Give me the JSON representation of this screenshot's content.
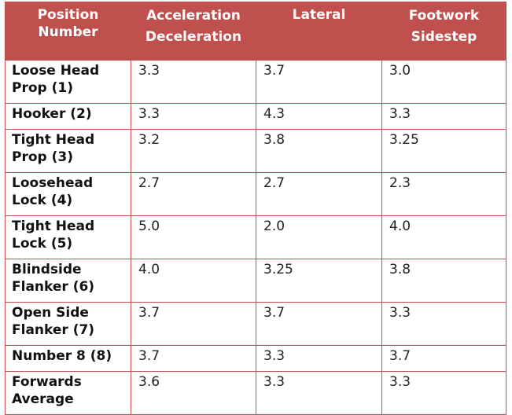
{
  "table": {
    "headers": [
      {
        "lines": [
          "Position",
          "Number"
        ]
      },
      {
        "lines": [
          "Acceleration",
          "Deceleration"
        ]
      },
      {
        "lines": [
          "Lateral"
        ]
      },
      {
        "lines": [
          "Footwork",
          "Sidestep"
        ]
      }
    ],
    "rows": [
      {
        "position": [
          "Loose Head",
          "Prop (1)"
        ],
        "acceleration": "3.3",
        "lateral": "3.7",
        "footwork": "3.0"
      },
      {
        "position": [
          "Hooker (2)"
        ],
        "acceleration": "3.3",
        "lateral": "4.3",
        "footwork": "3.3"
      },
      {
        "position": [
          "Tight Head",
          "Prop (3)"
        ],
        "acceleration": "3.2",
        "lateral": "3.8",
        "footwork": "3.25"
      },
      {
        "position": [
          "Loosehead",
          "Lock (4)"
        ],
        "acceleration": "2.7",
        "lateral": "2.7",
        "footwork": "2.3"
      },
      {
        "position": [
          "Tight Head",
          "Lock (5)"
        ],
        "acceleration": "5.0",
        "lateral": "2.0",
        "footwork": "4.0"
      },
      {
        "position": [
          "Blindside",
          "Flanker (6)"
        ],
        "acceleration": "4.0",
        "lateral": "3.25",
        "footwork": "3.8"
      },
      {
        "position": [
          "Open Side",
          "Flanker (7)"
        ],
        "acceleration": "3.7",
        "lateral": "3.7",
        "footwork": "3.3"
      },
      {
        "position": [
          "Number 8 (8)"
        ],
        "acceleration": "3.7",
        "lateral": "3.3",
        "footwork": "3.7"
      },
      {
        "position": [
          "Forwards",
          "Average"
        ],
        "acceleration": "3.6",
        "lateral": "3.3",
        "footwork": "3.3"
      }
    ]
  },
  "colors": {
    "header_bg": "#c0504d",
    "header_text": "#ffffff",
    "border": "#c0504d"
  }
}
